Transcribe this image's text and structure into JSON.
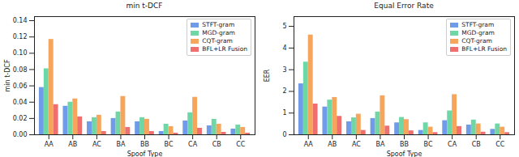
{
  "chart_data": [
    {
      "type": "bar",
      "title": "min t-DCF",
      "xlabel": "Spoof Type",
      "ylabel": "min t-DCF",
      "categories": [
        "AA",
        "AB",
        "AC",
        "BA",
        "BB",
        "BC",
        "CA",
        "CB",
        "CC"
      ],
      "series": [
        {
          "name": "STFT-gram",
          "color": "#6f9be8",
          "values": [
            0.058,
            0.035,
            0.016,
            0.02,
            0.016,
            0.004,
            0.017,
            0.011,
            0.007
          ]
        },
        {
          "name": "MGD-gram",
          "color": "#6fd6a6",
          "values": [
            0.081,
            0.04,
            0.021,
            0.028,
            0.021,
            0.013,
            0.027,
            0.019,
            0.012
          ]
        },
        {
          "name": "CQT-gram",
          "color": "#f5a55c",
          "values": [
            0.117,
            0.044,
            0.024,
            0.047,
            0.019,
            0.01,
            0.046,
            0.013,
            0.009
          ]
        },
        {
          "name": "BFL+LR Fusion",
          "color": "#ef6f6f",
          "values": [
            0.037,
            0.022,
            0.004,
            0.009,
            0.004,
            0.002,
            0.008,
            0.003,
            0.002
          ]
        }
      ],
      "ylim": [
        0,
        0.145
      ],
      "yticks": [
        {
          "value": 0,
          "label": "0.00"
        },
        {
          "value": 0.02,
          "label": "0.02"
        },
        {
          "value": 0.04,
          "label": "0.04"
        },
        {
          "value": 0.06,
          "label": "0.06"
        },
        {
          "value": 0.08,
          "label": "0.08"
        },
        {
          "value": 0.1,
          "label": "0.10"
        },
        {
          "value": 0.12,
          "label": "0.12"
        },
        {
          "value": 0.14,
          "label": "0.14"
        }
      ],
      "legend": "upper right"
    },
    {
      "type": "bar",
      "title": "Equal Error Rate",
      "xlabel": "Spoof Type",
      "ylabel": "EER",
      "categories": [
        "AA",
        "AB",
        "AC",
        "BA",
        "BB",
        "BC",
        "CA",
        "CB",
        "CC"
      ],
      "series": [
        {
          "name": "STFT-gram",
          "color": "#6f9be8",
          "values": [
            2.35,
            1.28,
            0.6,
            0.75,
            0.55,
            0.2,
            0.65,
            0.45,
            0.25
          ]
        },
        {
          "name": "MGD-gram",
          "color": "#6fd6a6",
          "values": [
            3.35,
            1.6,
            0.78,
            1.05,
            0.8,
            0.55,
            1.1,
            0.68,
            0.5
          ]
        },
        {
          "name": "CQT-gram",
          "color": "#f5a55c",
          "values": [
            4.6,
            1.72,
            0.95,
            1.8,
            0.7,
            0.35,
            1.85,
            0.5,
            0.35
          ]
        },
        {
          "name": "BFL+LR Fusion",
          "color": "#ef6f6f",
          "values": [
            1.42,
            0.85,
            0.2,
            0.4,
            0.18,
            0.1,
            0.38,
            0.12,
            0.1
          ]
        }
      ],
      "ylim": [
        0,
        5.45
      ],
      "yticks": [
        0,
        1,
        2,
        3,
        4,
        5
      ],
      "legend": "upper right"
    }
  ]
}
